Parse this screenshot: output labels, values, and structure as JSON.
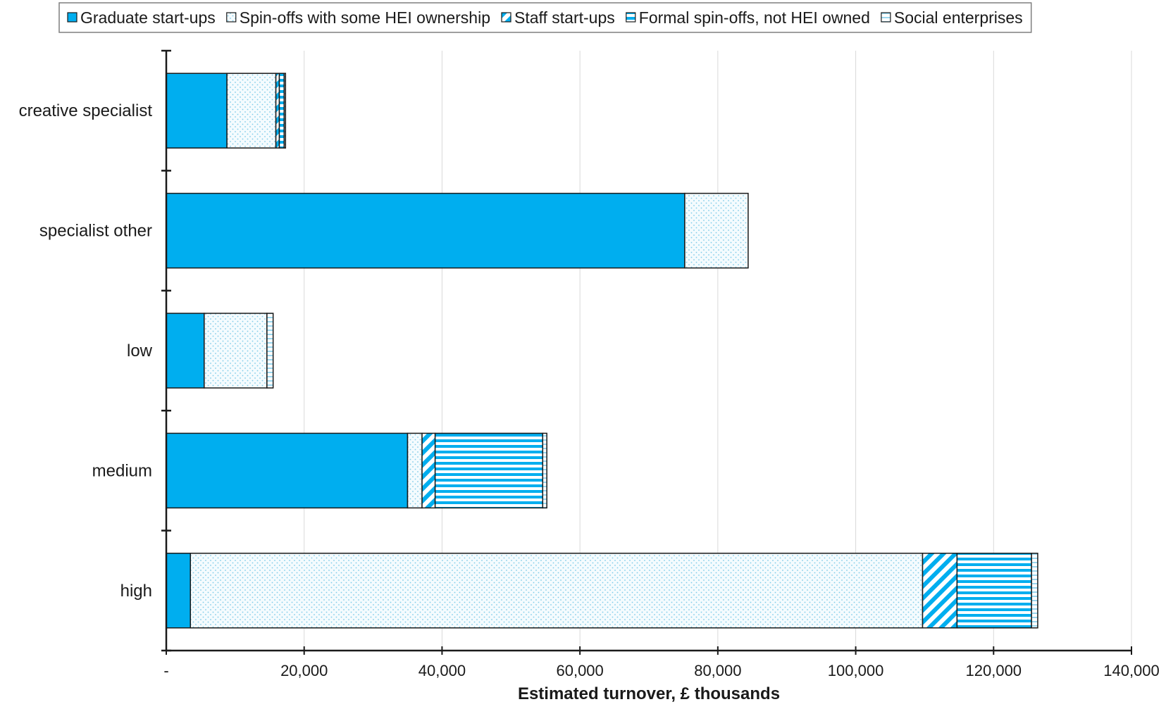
{
  "chart_data": {
    "type": "bar",
    "orientation": "horizontal",
    "stacked": true,
    "categories": [
      "creative specialist",
      "specialist other",
      "low",
      "medium",
      "high"
    ],
    "series": [
      {
        "name": "Graduate start-ups",
        "values": [
          8800,
          75200,
          5500,
          35000,
          3500
        ],
        "color": "#00AEEF",
        "pattern": "solid"
      },
      {
        "name": "Spin-offs with some HEI ownership",
        "values": [
          7100,
          9200,
          9100,
          2100,
          106200
        ],
        "color": "#ffffff",
        "pattern": "dots"
      },
      {
        "name": "Staff start-ups",
        "values": [
          500,
          0,
          0,
          1900,
          5000
        ],
        "color": "#00AEEF",
        "pattern": "diagonal"
      },
      {
        "name": "Formal spin-offs, not HEI owned",
        "values": [
          700,
          0,
          0,
          15600,
          10800
        ],
        "color": "#00AEEF",
        "pattern": "horizontal-lines"
      },
      {
        "name": "Social enterprises",
        "values": [
          200,
          0,
          900,
          600,
          900
        ],
        "color": "#ffffff",
        "pattern": "light-lines"
      }
    ],
    "xlabel": "Estimated turnover, £ thousands",
    "ylabel": "",
    "xlim": [
      0,
      140000
    ],
    "xticks": [
      0,
      20000,
      40000,
      60000,
      80000,
      100000,
      120000,
      140000
    ],
    "xtick_labels": [
      "-",
      "20,000",
      "40,000",
      "60,000",
      "80,000",
      "100,000",
      "120,000",
      "140,000"
    ],
    "grid": "vertical",
    "legend_position": "top"
  }
}
